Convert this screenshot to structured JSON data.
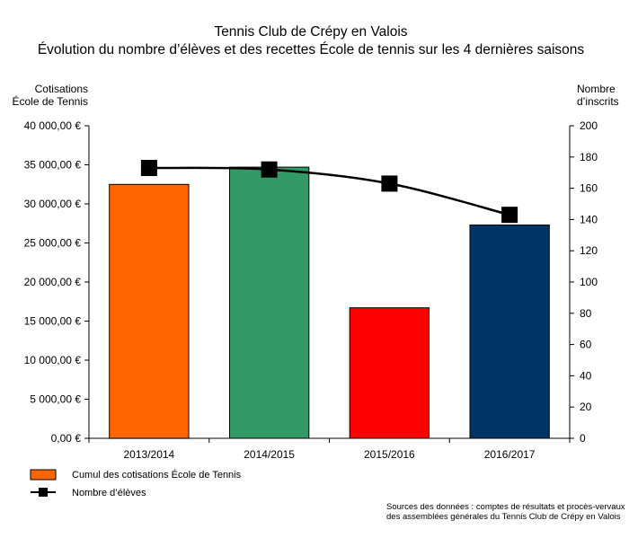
{
  "chart_data": {
    "type": "bar",
    "title": "Tennis Club de Crépy en Valois",
    "subtitle": "Évolution du nombre d’élèves et des recettes École de tennis sur les 4 dernières saisons",
    "categories": [
      "2013/2014",
      "2014/2015",
      "2015/2016",
      "2016/2017"
    ],
    "y_left": {
      "label_line1": "Cotisations",
      "label_line2": "École de Tennis",
      "range": [
        0,
        40000
      ],
      "ticks": [
        "0,00 €",
        "5 000,00 €",
        "10 000,00 €",
        "15 000,00 €",
        "20 000,00 €",
        "25 000,00 €",
        "30 000,00 €",
        "35 000,00 €",
        "40 000,00 €"
      ]
    },
    "y_right": {
      "label_line1": "Nombre",
      "label_line2": "d’inscrits",
      "range": [
        0,
        200
      ],
      "ticks": [
        "0",
        "20",
        "40",
        "60",
        "80",
        "100",
        "120",
        "140",
        "160",
        "180",
        "200"
      ]
    },
    "series": [
      {
        "name": "Cumul des cotisations École de Tennis",
        "type": "bar",
        "axis": "left",
        "values": [
          32500,
          34700,
          16700,
          27300
        ],
        "colors": [
          "#ff6600",
          "#339966",
          "#ff0000",
          "#003366"
        ]
      },
      {
        "name": "Nombre d’élèves",
        "type": "line",
        "axis": "right",
        "values": [
          173,
          172,
          163,
          143
        ],
        "color": "#000000"
      }
    ],
    "legend": {
      "placement": "bottom-left",
      "swatch_color": "#ff6600"
    },
    "grid": false,
    "source_line1": "Sources des données : comptes de résultats et procès-vervaux",
    "source_line2": "des assemblées générales du Tennis Club de Crépy en Valois"
  }
}
